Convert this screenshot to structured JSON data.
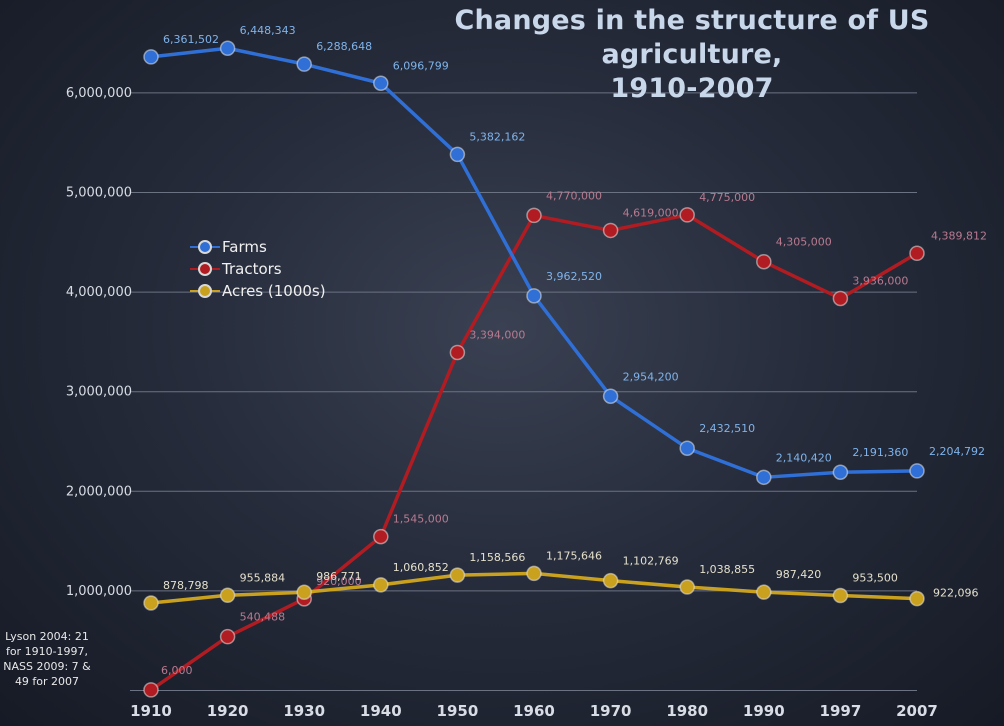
{
  "chart_data": {
    "type": "line",
    "title": "Changes in the structure of US agriculture,",
    "subtitle": "1910-2007",
    "xlabel": "",
    "ylabel": "",
    "categories": [
      "1910",
      "1920",
      "1930",
      "1940",
      "1950",
      "1960",
      "1970",
      "1980",
      "1990",
      "1997",
      "2007"
    ],
    "ylim": [
      0,
      7000000
    ],
    "yticks": [
      1000000,
      2000000,
      3000000,
      4000000,
      5000000,
      6000000
    ],
    "ytick_labels": [
      "1,000,000",
      "2,000,000",
      "3,000,000",
      "4,000,000",
      "5,000,000",
      "6,000,000"
    ],
    "grid": true,
    "legend_position": "left-middle",
    "series": [
      {
        "name": "Farms",
        "color": "#2f6fd6",
        "label_color": "#7fb3ea",
        "values": [
          6361502,
          6448343,
          6288648,
          6096799,
          5382162,
          3962520,
          2954200,
          2432510,
          2140420,
          2191360,
          2204792
        ],
        "labels": [
          "6,361,502",
          "6,448,343",
          "6,288,648",
          "6,096,799",
          "5,382,162",
          "3,962,520",
          "2,954,200",
          "2,432,510",
          "2,140,420",
          "2,191,360",
          "2,204,792"
        ]
      },
      {
        "name": "Tractors",
        "color": "#b01c22",
        "label_color": "#b87a90",
        "values": [
          6000,
          540488,
          920000,
          1545000,
          3394000,
          4770000,
          4619000,
          4775000,
          4305000,
          3936000,
          4389812
        ],
        "labels": [
          "6,000",
          "540,488",
          "920,000",
          "1,545,000",
          "3,394,000",
          "4,770,000",
          "4,619,000",
          "4,775,000",
          "4,305,000",
          "3,936,000",
          "4,389,812"
        ]
      },
      {
        "name": "Acres (1000s)",
        "color": "#c9a11f",
        "label_color": "#e4e0cc",
        "values": [
          878798,
          955884,
          986771,
          1060852,
          1158566,
          1175646,
          1102769,
          1038855,
          987420,
          953500,
          922096
        ],
        "labels": [
          "878,798",
          "955,884",
          "986,771",
          "1,060,852",
          "1,158,566",
          "1,175,646",
          "1,102,769",
          "1,038,855",
          "987,420",
          "953,500",
          "922,096"
        ]
      }
    ]
  },
  "source_note": "Lyson 2004: 21 for 1910-1997, NASS 2009: 7 & 49 for 2007"
}
